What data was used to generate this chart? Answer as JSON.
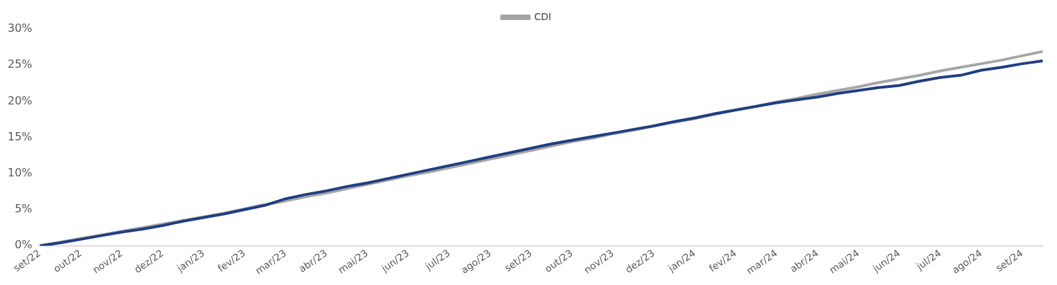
{
  "chart_data": {
    "type": "line",
    "categories": [
      "set/22",
      null,
      "out/22",
      null,
      "nov/22",
      null,
      "dez/22",
      null,
      "jan/23",
      null,
      "fev/23",
      null,
      "mar/23",
      null,
      "abr/23",
      null,
      "mai/23",
      null,
      "jun/23",
      null,
      "jul/23",
      null,
      "ago/23",
      null,
      "set/23",
      null,
      "out/23",
      null,
      "nov/23",
      null,
      "dez/23",
      null,
      "jan/24",
      null,
      "fev/24",
      null,
      "mar/24",
      null,
      "abr/24",
      null,
      "mai/24",
      null,
      "jun/24",
      null,
      "jul/24",
      null,
      "ago/24",
      null,
      "set/24",
      null
    ],
    "series": [
      {
        "color": "#1f3f82",
        "values": [
          0,
          0.4,
          0.9,
          1.4,
          1.9,
          2.3,
          2.8,
          3.4,
          3.9,
          4.4,
          5.0,
          5.6,
          6.5,
          7.1,
          7.6,
          8.2,
          8.7,
          9.3,
          9.9,
          10.5,
          11.1,
          11.7,
          12.3,
          12.9,
          13.5,
          14.1,
          14.6,
          15.1,
          15.6,
          16.1,
          16.6,
          17.2,
          17.7,
          18.3,
          18.8,
          19.3,
          19.8,
          20.2,
          20.6,
          21.1,
          21.5,
          21.9,
          22.2,
          22.8,
          23.3,
          23.6,
          24.3,
          24.7,
          25.2,
          25.6
        ]
      },
      {
        "name": "CDI",
        "color": "#a6a6a6",
        "values": [
          0,
          0.5,
          1.0,
          1.5,
          2.0,
          2.5,
          3.0,
          3.5,
          4.0,
          4.5,
          5.1,
          5.7,
          6.2,
          6.8,
          7.3,
          7.9,
          8.5,
          9.1,
          9.7,
          10.2,
          10.8,
          11.4,
          12.0,
          12.6,
          13.2,
          13.8,
          14.4,
          14.9,
          15.5,
          16.0,
          16.6,
          17.1,
          17.6,
          18.2,
          18.8,
          19.3,
          19.9,
          20.4,
          21.0,
          21.5,
          22.0,
          22.6,
          23.1,
          23.6,
          24.2,
          24.7,
          25.2,
          25.7,
          26.3,
          26.9
        ]
      }
    ],
    "ylim": [
      0,
      30
    ],
    "yticks": [
      {
        "value": 0,
        "label": "0%"
      },
      {
        "value": 5,
        "label": "5%"
      },
      {
        "value": 10,
        "label": "10%"
      },
      {
        "value": 15,
        "label": "15%"
      },
      {
        "value": 20,
        "label": "20%"
      },
      {
        "value": 25,
        "label": "25%"
      },
      {
        "value": 30,
        "label": "30%"
      }
    ],
    "grid": false,
    "legend": "top",
    "marker": "none",
    "line_style": "solid"
  }
}
